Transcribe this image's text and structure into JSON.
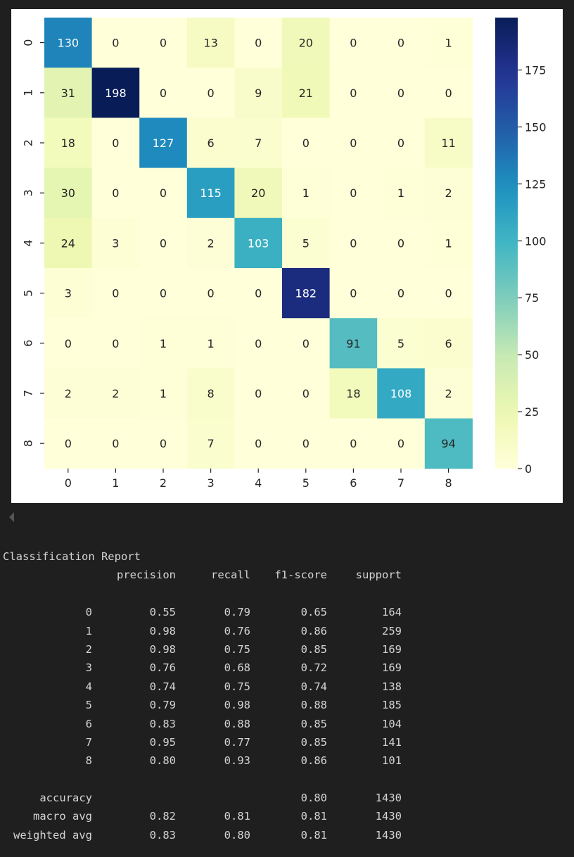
{
  "chart_data": {
    "type": "heatmap",
    "title": "",
    "xlabel": "",
    "ylabel": "",
    "x_categories": [
      "0",
      "1",
      "2",
      "3",
      "4",
      "5",
      "6",
      "7",
      "8"
    ],
    "y_categories": [
      "0",
      "1",
      "2",
      "3",
      "4",
      "5",
      "6",
      "7",
      "8"
    ],
    "matrix": [
      [
        130,
        0,
        0,
        13,
        0,
        20,
        0,
        0,
        1
      ],
      [
        31,
        198,
        0,
        0,
        9,
        21,
        0,
        0,
        0
      ],
      [
        18,
        0,
        127,
        6,
        7,
        0,
        0,
        0,
        11
      ],
      [
        30,
        0,
        0,
        115,
        20,
        1,
        0,
        1,
        2
      ],
      [
        24,
        3,
        0,
        2,
        103,
        5,
        0,
        0,
        1
      ],
      [
        3,
        0,
        0,
        0,
        0,
        182,
        0,
        0,
        0
      ],
      [
        0,
        0,
        1,
        1,
        0,
        0,
        91,
        5,
        6
      ],
      [
        2,
        2,
        1,
        8,
        0,
        0,
        18,
        108,
        2
      ],
      [
        0,
        0,
        0,
        7,
        0,
        0,
        0,
        0,
        94
      ]
    ],
    "colormap": "YlGnBu",
    "colorbar": {
      "range": [
        0,
        198
      ],
      "ticks": [
        0,
        25,
        50,
        75,
        100,
        125,
        150,
        175
      ],
      "tick_labels": [
        "0",
        "25",
        "50",
        "75",
        "100",
        "125",
        "150",
        "175"
      ]
    },
    "annotations": true
  },
  "report": {
    "title": "Classification Report",
    "header": [
      "precision",
      "recall",
      "f1-score",
      "support"
    ],
    "rows": [
      {
        "label": "0",
        "values": [
          "0.55",
          "0.79",
          "0.65",
          "164"
        ]
      },
      {
        "label": "1",
        "values": [
          "0.98",
          "0.76",
          "0.86",
          "259"
        ]
      },
      {
        "label": "2",
        "values": [
          "0.98",
          "0.75",
          "0.85",
          "169"
        ]
      },
      {
        "label": "3",
        "values": [
          "0.76",
          "0.68",
          "0.72",
          "169"
        ]
      },
      {
        "label": "4",
        "values": [
          "0.74",
          "0.75",
          "0.74",
          "138"
        ]
      },
      {
        "label": "5",
        "values": [
          "0.79",
          "0.98",
          "0.88",
          "185"
        ]
      },
      {
        "label": "6",
        "values": [
          "0.83",
          "0.88",
          "0.85",
          "104"
        ]
      },
      {
        "label": "7",
        "values": [
          "0.95",
          "0.77",
          "0.85",
          "141"
        ]
      },
      {
        "label": "8",
        "values": [
          "0.80",
          "0.93",
          "0.86",
          "101"
        ]
      }
    ],
    "summary": [
      {
        "label": "accuracy",
        "values": [
          "",
          "",
          "0.80",
          "1430"
        ]
      },
      {
        "label": "macro avg",
        "values": [
          "0.82",
          "0.81",
          "0.81",
          "1430"
        ]
      },
      {
        "label": "weighted avg",
        "values": [
          "0.83",
          "0.80",
          "0.81",
          "1430"
        ]
      }
    ]
  },
  "colors": {
    "page_background": "#1f1f1f",
    "report_text": "#d4d4d4",
    "figure_background": "#ffffff"
  }
}
